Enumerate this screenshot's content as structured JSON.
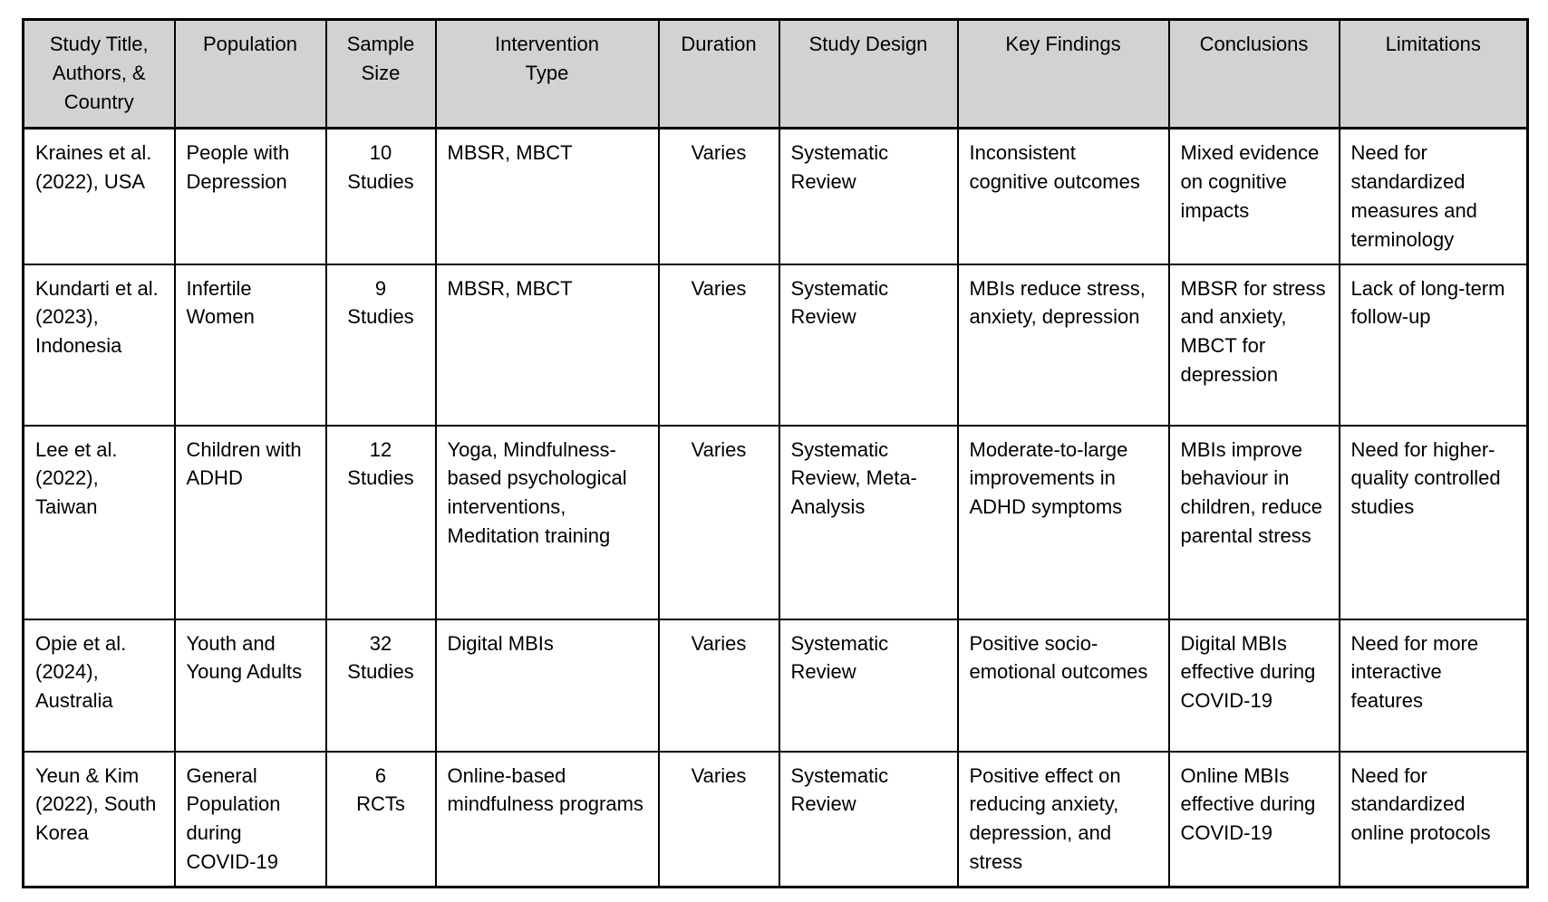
{
  "colors": {
    "page_bg": "#ffffff",
    "header_bg": "#d2d2d2",
    "border": "#000000",
    "text": "#000000"
  },
  "table": {
    "columns": [
      {
        "label": "Study Title,\nAuthors, &\nCountry"
      },
      {
        "label": "Population"
      },
      {
        "label": "Sample\nSize"
      },
      {
        "label": "Intervention\nType"
      },
      {
        "label": "Duration"
      },
      {
        "label": "Study Design"
      },
      {
        "label": "Key Findings"
      },
      {
        "label": "Conclusions"
      },
      {
        "label": "Limitations"
      }
    ],
    "rows": [
      {
        "study": "Kraines et al. (2022), USA",
        "population": "People with Depression",
        "sample_size": "10\nStudies",
        "intervention": "MBSR, MBCT",
        "duration": "Varies",
        "design": "Systematic Review",
        "findings": "Inconsistent cognitive outcomes",
        "conclusions": "Mixed evidence on cognitive impacts",
        "limitations": "Need for standardized measures and terminology"
      },
      {
        "study": "Kundarti et al. (2023), Indonesia",
        "population": "Infertile Women",
        "sample_size": "9\nStudies",
        "intervention": "MBSR, MBCT",
        "duration": "Varies",
        "design": "Systematic Review",
        "findings": "MBIs reduce stress, anxiety, depression",
        "conclusions": "MBSR for stress and anxiety, MBCT for depression",
        "limitations": "Lack of long-term follow-up"
      },
      {
        "study": "Lee et al. (2022), Taiwan",
        "population": "Children with ADHD",
        "sample_size": "12\nStudies",
        "intervention": "Yoga, Mindfulness-based psychological interventions, Meditation training",
        "duration": "Varies",
        "design": "Systematic Review, Meta-Analysis",
        "findings": "Moderate-to-large improvements in ADHD symptoms",
        "conclusions": "MBIs improve behaviour in children, reduce parental stress",
        "limitations": "Need for higher-quality controlled studies"
      },
      {
        "study": "Opie et al. (2024), Australia",
        "population": "Youth and Young Adults",
        "sample_size": "32\nStudies",
        "intervention": "Digital MBIs",
        "duration": "Varies",
        "design": "Systematic Review",
        "findings": "Positive socio-emotional outcomes",
        "conclusions": "Digital MBIs effective during COVID-19",
        "limitations": "Need for more interactive features"
      },
      {
        "study": "Yeun & Kim (2022), South Korea",
        "population": "General Population during COVID-19",
        "sample_size": "6\nRCTs",
        "intervention": "Online-based mindfulness programs",
        "duration": "Varies",
        "design": "Systematic Review",
        "findings": "Positive effect on reducing anxiety, depression, and stress",
        "conclusions": "Online MBIs effective during COVID-19",
        "limitations": "Need for standardized online protocols"
      }
    ]
  }
}
